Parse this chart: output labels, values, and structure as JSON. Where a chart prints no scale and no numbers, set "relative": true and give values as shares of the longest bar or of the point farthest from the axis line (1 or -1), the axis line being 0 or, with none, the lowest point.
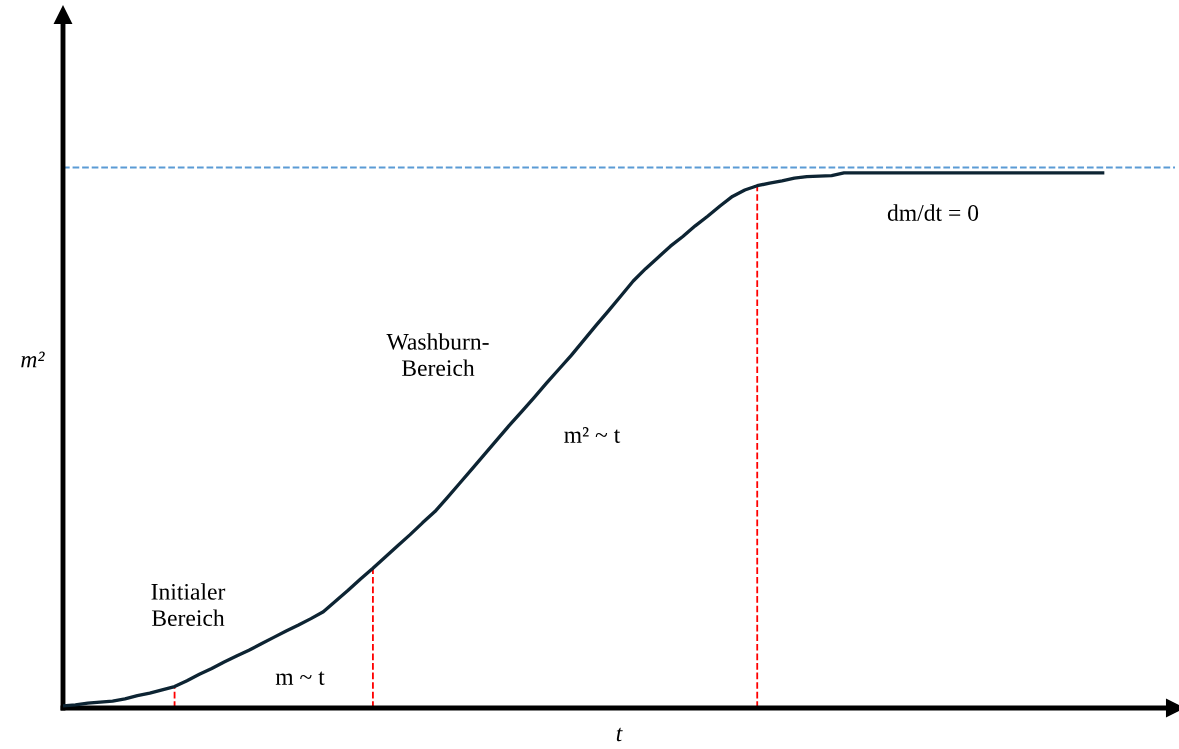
{
  "chart_data": {
    "type": "line",
    "relative": true,
    "xlabel": "t",
    "ylabel": "m²",
    "categories": [
      null,
      null,
      null,
      null,
      null,
      null,
      null,
      null,
      null,
      null,
      null,
      null,
      null,
      null,
      null,
      null,
      null,
      null,
      null,
      null,
      null,
      null,
      null,
      null,
      null,
      null,
      null,
      null,
      null,
      null,
      null,
      null,
      null,
      null,
      null,
      null,
      null,
      null,
      null,
      null,
      null,
      null,
      null,
      null,
      null,
      null,
      null,
      null,
      null,
      null,
      null,
      null,
      null,
      null,
      null,
      null,
      null,
      null,
      null,
      null,
      null,
      null,
      null,
      null,
      null,
      null,
      null,
      null,
      null,
      null,
      null,
      null,
      null,
      null,
      null,
      null,
      null,
      null,
      null,
      null,
      null,
      null,
      null,
      null,
      null
    ],
    "series": [
      {
        "color": "#0d2433",
        "values": [
          0.004,
          0.006,
          0.009,
          0.011,
          0.013,
          0.017,
          0.023,
          0.028,
          0.034,
          0.04,
          0.051,
          0.063,
          0.074,
          0.086,
          0.097,
          0.108,
          0.12,
          0.132,
          0.144,
          0.155,
          0.167,
          0.18,
          0.2,
          0.22,
          0.241,
          0.261,
          0.282,
          0.303,
          0.324,
          0.346,
          0.367,
          0.393,
          0.42,
          0.447,
          0.474,
          0.501,
          0.528,
          0.554,
          0.58,
          0.607,
          0.633,
          0.659,
          0.687,
          0.715,
          0.742,
          0.77,
          0.798,
          0.821,
          0.842,
          0.863,
          0.881,
          0.901,
          0.919,
          0.938,
          0.956,
          0.968,
          0.976,
          0.981,
          0.985,
          0.99,
          0.993,
          0.994,
          0.995,
          1.0,
          1.0,
          1.0,
          1.0,
          1.0,
          1.0,
          1.0,
          1.0,
          1.0,
          1.0,
          1.0,
          1.0,
          1.0,
          1.0,
          1.0,
          1.0,
          1.0,
          1.0,
          1.0,
          1.0,
          1.0,
          1.0
        ]
      }
    ],
    "ref_lines": [
      {
        "axis": "y",
        "value": 1.01,
        "color": "#5b9bd5",
        "line_style": "dashed"
      }
    ],
    "annotations": [
      "Initialer\nBereich",
      "m ~ t",
      "Washburn-\nBereich",
      "m² ~ t",
      "dm/dt = 0"
    ],
    "legend": false,
    "marker": "none",
    "line_style": "solid"
  }
}
